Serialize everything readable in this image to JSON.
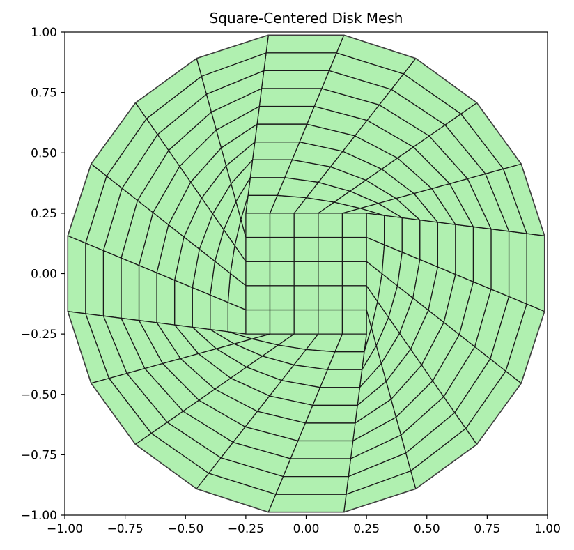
{
  "title": "Square-Centered Disk Mesh",
  "chart_data": {
    "type": "mesh",
    "title": "Square-Centered Disk Mesh",
    "xlabel": "",
    "ylabel": "",
    "xlim": [
      -1.0,
      1.0
    ],
    "ylim": [
      -1.0,
      1.0
    ],
    "aspect": "equal",
    "grid": false,
    "x_ticks": [
      -1.0,
      -0.75,
      -0.5,
      -0.25,
      0.0,
      0.25,
      0.5,
      0.75,
      1.0
    ],
    "y_ticks": [
      -1.0,
      -0.75,
      -0.5,
      -0.25,
      0.0,
      0.25,
      0.5,
      0.75,
      1.0
    ],
    "x_tick_labels": [
      "−1.00",
      "−0.75",
      "−0.50",
      "−0.25",
      "0.00",
      "0.25",
      "0.50",
      "0.75",
      "1.00"
    ],
    "y_tick_labels": [
      "−1.00",
      "−0.75",
      "−0.50",
      "−0.25",
      "0.00",
      "0.25",
      "0.50",
      "0.75",
      "1.00"
    ],
    "mesh": {
      "disk_radius": 1.0,
      "inner_square_half_width": 0.25,
      "inner_square_cells_per_side": 5,
      "boundary_segments": 20,
      "radial_layers": 10,
      "face_color": "#b0f0b0",
      "edge_color": "#1a1a1a",
      "outline_color": "#404040"
    }
  }
}
